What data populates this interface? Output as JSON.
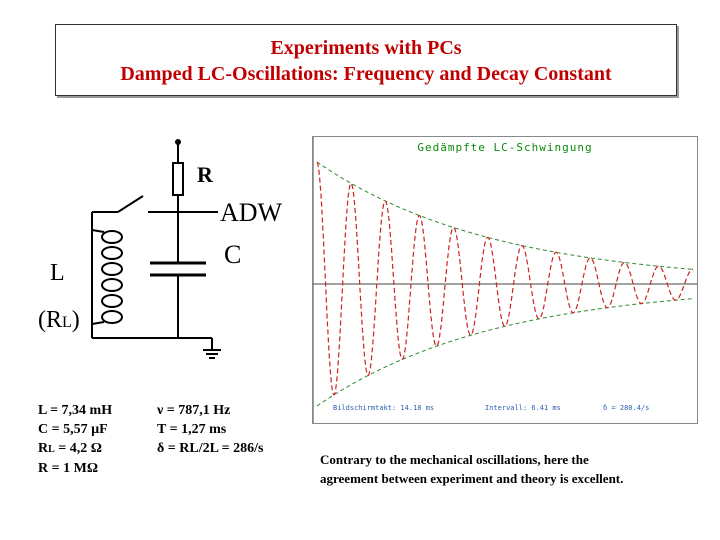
{
  "title": {
    "line1": "Experiments with PCs",
    "line2": "Damped LC-Oscillations: Frequency and Decay Constant"
  },
  "circuit": {
    "label_r": "R",
    "label_adw": "ADW",
    "label_c": "C",
    "label_l": "L",
    "label_rl_open": "(R",
    "label_rl_sub": "L",
    "label_rl_close": ")"
  },
  "params_left": [
    {
      "sym": "L",
      "sub": "",
      "val": " = 7,34 mH"
    },
    {
      "sym": "C",
      "sub": "",
      "val": " = 5,57 µF"
    },
    {
      "sym": "R",
      "sub": "L",
      "val": " = 4,2 Ω"
    },
    {
      "sym": "R",
      "sub": "",
      "val": " = 1 MΩ"
    }
  ],
  "params_right": [
    {
      "sym": "ν",
      "val": " = 787,1 Hz"
    },
    {
      "sym": "T",
      "val": " = 1,27 ms"
    },
    {
      "sym": "δ",
      "val": " = RL/2L = 286/s"
    }
  ],
  "scope": {
    "title": "Gedämpfte LC-Schwingung",
    "readout_1": "Bildschirmtakt: 14.18 ms",
    "readout_2": "Intervall: 6.41 ms",
    "readout_3": "δ = 280.4/s",
    "signal": {
      "cycles": 11,
      "decay_end": 0.12
    },
    "colors": {
      "signal": "#cc2222",
      "envelope": "#2e8b2e",
      "axis": "#444444"
    }
  },
  "conclusion": {
    "line1": "Contrary to the mechanical oscillations, here the",
    "line2": "agreement between experiment and theory is excellent."
  }
}
